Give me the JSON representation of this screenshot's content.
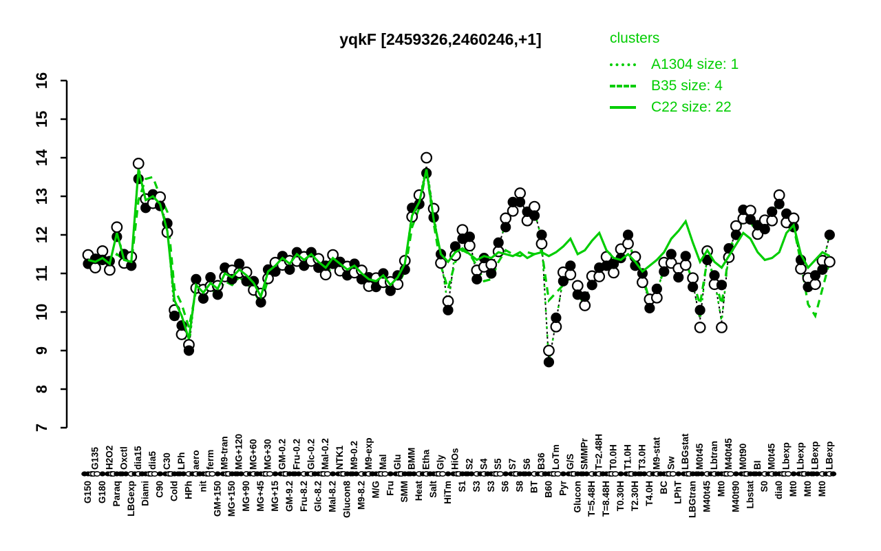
{
  "accent_green": "#00CD00",
  "black": "#000000",
  "title": "yqkF [2459326,2460246,+1]",
  "legend": {
    "header": "clusters",
    "items": [
      {
        "style": "dotted",
        "label": "A1304 size: 1"
      },
      {
        "style": "dashed",
        "label": "B35 size: 4"
      },
      {
        "style": "solid",
        "label": "C22 size: 22"
      }
    ]
  },
  "chart_data": {
    "type": "line",
    "title": "yqkF [2459326,2460246,+1]",
    "xlabel": "",
    "ylabel": "",
    "ylim": [
      7,
      16
    ],
    "ytick_step": 1,
    "grid": false,
    "legend_position": "top-right",
    "categories": [
      "G150",
      "G135",
      "G180",
      "H2O2",
      "Paraq",
      "Oxctl",
      "LBGexp",
      "dia15",
      "Diami",
      "dia5",
      "C90",
      "C30",
      "Cold",
      "LPh",
      "HPh",
      "aero",
      "nit",
      "ferm",
      "GM+150",
      "M9-tran",
      "MG+150",
      "MG+120",
      "MG+90",
      "MG+60",
      "MG+45",
      "MG+30",
      "MG+15",
      "GM-0.2",
      "GM-9.2",
      "Fru-0.2",
      "Fru-8.2",
      "Glc-0.2",
      "Glc-8.2",
      "Mal-0.2",
      "Mal-8.2",
      "NTK1",
      "Glucon8",
      "M9-0.2",
      "M9-8.2",
      "M9-exp",
      "M/G",
      "Mal",
      "Fru",
      "Glu",
      "SMM",
      "BMM",
      "Heat",
      "Etha",
      "Salt",
      "Gly",
      "HiTm",
      "HiOs",
      "S1",
      "S2",
      "S3",
      "S4",
      "S3",
      "S5",
      "S6",
      "S7",
      "S8",
      "S6",
      "BT",
      "B36",
      "B60",
      "LoTm",
      "Pyr",
      "G/S",
      "Glucon",
      "SMMPr",
      "T=5.48H",
      "T=2.48H",
      "T=8.48H",
      "T0.0H",
      "T0.30H",
      "T1.0H",
      "T2.30H",
      "T3.0H",
      "T4.0H",
      "M9-stat",
      "BC",
      "Sw",
      "LPhT",
      "LBGstat",
      "LBGtran",
      "M0t45",
      "M40t45",
      "Lbtran",
      "Mt0",
      "M40t45",
      "M40t90",
      "M0t90",
      "Lbstat",
      "BI",
      "S0",
      "M0t45",
      "dia0",
      "Lbexp",
      "Mt0",
      "Lbexp",
      "Mt0",
      "LBexp",
      "Mt0",
      "LBexp"
    ],
    "label_row_pattern": "bt",
    "series": [
      {
        "name": "gene-profile-mean",
        "values": [
          11.35,
          11.28,
          11.45,
          11.22,
          12.1,
          11.4,
          11.3,
          13.8,
          12.8,
          12.95,
          12.85,
          12.2,
          10.0,
          9.55,
          9.05,
          10.75,
          10.45,
          10.8,
          10.55,
          11.05,
          10.95,
          11.15,
          10.9,
          10.7,
          10.35,
          11.0,
          11.15,
          11.35,
          11.2,
          11.45,
          11.3,
          11.45,
          11.25,
          11.1,
          11.35,
          11.2,
          11.05,
          11.15,
          10.95,
          10.8,
          10.75,
          10.9,
          10.65,
          10.85,
          11.2,
          12.6,
          12.9,
          13.8,
          12.55,
          11.4,
          10.15,
          11.6,
          12.0,
          11.85,
          10.95,
          11.3,
          11.1,
          11.7,
          12.3,
          12.75,
          12.95,
          12.5,
          12.6,
          11.9,
          8.7,
          9.75,
          10.9,
          11.1,
          10.55,
          10.3,
          10.8,
          11.05,
          11.3,
          11.15,
          11.5,
          11.9,
          11.3,
          10.9,
          10.2,
          10.5,
          11.15,
          11.4,
          11.0,
          11.35,
          10.75,
          9.8,
          11.45,
          10.85,
          9.75,
          11.55,
          12.1,
          12.55,
          12.5,
          12.15,
          12.25,
          12.5,
          12.9,
          12.45,
          12.3,
          11.25,
          10.75,
          10.85,
          11.2,
          12.0
        ]
      },
      {
        "name": "A1304",
        "size": 1,
        "line": "dotted",
        "values": "same-as-mean"
      },
      {
        "name": "B35",
        "size": 4,
        "line": "dashed",
        "values": [
          11.3,
          11.25,
          11.4,
          11.2,
          11.5,
          11.35,
          11.25,
          12.9,
          13.45,
          13.5,
          13.0,
          12.6,
          10.6,
          10.2,
          9.6,
          10.55,
          10.4,
          10.6,
          10.45,
          10.8,
          10.7,
          10.9,
          10.75,
          10.55,
          10.2,
          10.85,
          11.0,
          11.2,
          11.05,
          11.3,
          11.15,
          11.3,
          11.1,
          10.95,
          11.2,
          11.05,
          10.9,
          11.0,
          10.8,
          10.65,
          10.6,
          10.75,
          10.5,
          10.7,
          11.05,
          12.2,
          12.7,
          13.7,
          12.3,
          11.2,
          10.6,
          11.3,
          11.6,
          11.5,
          11.2,
          10.8,
          10.85,
          11.3,
          11.6,
          11.5,
          11.45,
          11.55,
          11.5,
          11.6,
          10.3,
          10.5,
          10.7,
          10.9,
          10.45,
          10.2,
          10.7,
          11.0,
          11.35,
          11.2,
          11.45,
          11.8,
          11.35,
          10.95,
          10.3,
          10.55,
          11.1,
          11.5,
          11.05,
          11.3,
          10.8,
          10.2,
          11.35,
          10.9,
          10.2,
          11.5,
          12.0,
          12.4,
          12.35,
          12.0,
          12.2,
          12.55,
          12.8,
          12.5,
          12.2,
          11.3,
          10.2,
          9.9,
          10.6,
          11.3
        ]
      },
      {
        "name": "C22",
        "size": 22,
        "line": "solid",
        "values": [
          11.35,
          11.3,
          11.4,
          11.25,
          12.05,
          11.35,
          11.3,
          13.7,
          12.9,
          13.0,
          12.8,
          12.1,
          10.3,
          9.9,
          9.3,
          10.7,
          10.5,
          10.75,
          10.6,
          11.0,
          10.9,
          11.1,
          10.95,
          10.75,
          10.4,
          11.05,
          11.2,
          11.4,
          11.25,
          11.5,
          11.35,
          11.5,
          11.3,
          11.15,
          11.4,
          11.25,
          11.1,
          11.2,
          11.0,
          10.85,
          10.8,
          10.95,
          10.7,
          10.9,
          11.25,
          12.5,
          12.85,
          13.7,
          12.4,
          11.5,
          11.3,
          11.55,
          11.65,
          11.5,
          11.35,
          11.45,
          11.4,
          11.55,
          11.5,
          11.45,
          11.55,
          11.4,
          11.5,
          11.55,
          11.45,
          11.55,
          11.7,
          11.9,
          11.5,
          11.6,
          11.85,
          12.05,
          11.6,
          11.4,
          11.35,
          11.5,
          11.3,
          11.05,
          11.2,
          11.35,
          11.55,
          11.9,
          12.1,
          12.35,
          11.8,
          11.3,
          11.6,
          11.3,
          11.15,
          11.45,
          11.75,
          12.05,
          11.9,
          11.55,
          11.35,
          11.4,
          11.55,
          12.05,
          12.25,
          11.5,
          11.15,
          11.35,
          11.55,
          11.45
        ]
      }
    ],
    "markers": {
      "jitter_filled_odd": -0.1,
      "jitter_open_odd": 0.13,
      "jitter_filled_even": 0.1,
      "jitter_open_even": -0.13,
      "overrides": {
        "5": [
          11.95,
          12.2
        ],
        "8": [
          13.45,
          13.85
        ],
        "13": [
          9.9,
          10.05
        ],
        "15": [
          9.0,
          9.15
        ],
        "48": [
          13.6,
          14.0
        ],
        "65": [
          8.7,
          9.0
        ],
        "86": [
          10.05,
          9.6
        ],
        "89": [
          10.7,
          9.6
        ],
        "104": [
          12.0,
          11.3
        ]
      }
    },
    "marker_row_cycle": [
      "ffo",
      "oo",
      "f",
      "fo",
      "off",
      "ff",
      "o",
      "fof"
    ],
    "yticks": [
      7,
      8,
      9,
      10,
      11,
      12,
      13,
      14,
      15,
      16
    ]
  }
}
